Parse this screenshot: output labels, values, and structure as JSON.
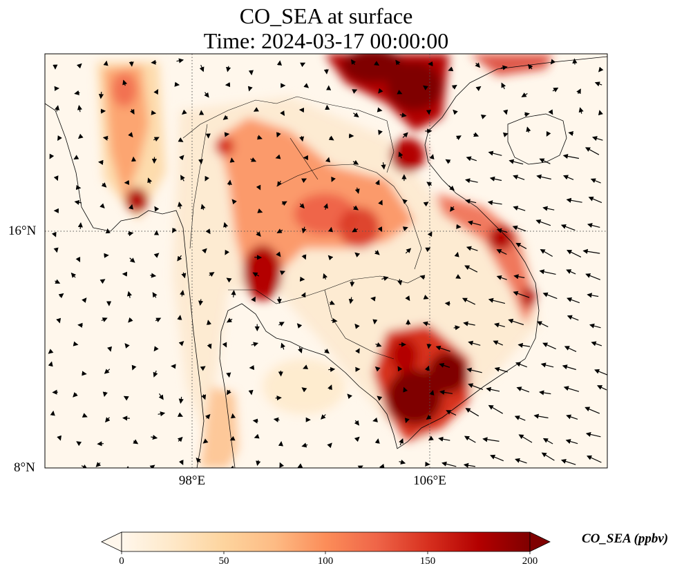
{
  "figure": {
    "title_line1": "CO_SEA at surface",
    "title_line2": "Time: 2024-03-17 00:00:00"
  },
  "map": {
    "lat_ticks": [
      "16°N",
      "8°N"
    ],
    "lon_ticks": [
      "98°E",
      "106°E"
    ],
    "gridlines": true,
    "gridline_style": "dotted",
    "coastlines": true,
    "country_borders": true,
    "wind_vectors": true
  },
  "colorbar": {
    "label": "CO_SEA (ppbv)",
    "ticks": [
      "0",
      "50",
      "100",
      "150",
      "200"
    ],
    "min": 0,
    "max": 200,
    "extend": "both",
    "colormap": "OrRd",
    "colors": [
      "#fff7ec",
      "#fee8c8",
      "#fdd49e",
      "#fdbb84",
      "#fc8d59",
      "#ef6548",
      "#d7301f",
      "#b30000",
      "#7f0000"
    ]
  }
}
